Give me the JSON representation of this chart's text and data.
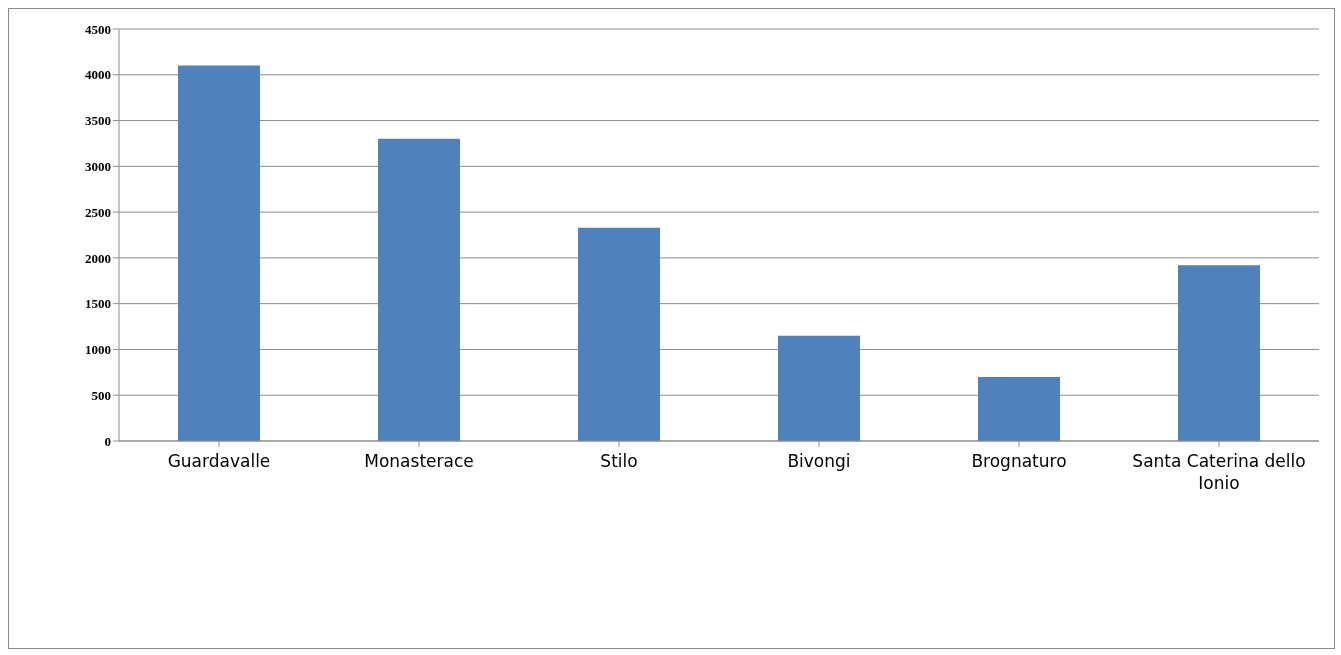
{
  "chart_data": {
    "type": "bar",
    "categories": [
      "Guardavalle",
      "Monasterace",
      "Stilo",
      "Bivongi",
      "Brognaturo",
      "Santa Caterina dello Ionio"
    ],
    "values": [
      4100,
      3300,
      2330,
      1150,
      700,
      1920
    ],
    "color": "#4f81bd",
    "ylim": [
      0,
      4500
    ],
    "yticks": [
      0,
      500,
      1000,
      1500,
      2000,
      2500,
      3000,
      3500,
      4000,
      4500
    ],
    "grid": "y",
    "legend": false
  }
}
